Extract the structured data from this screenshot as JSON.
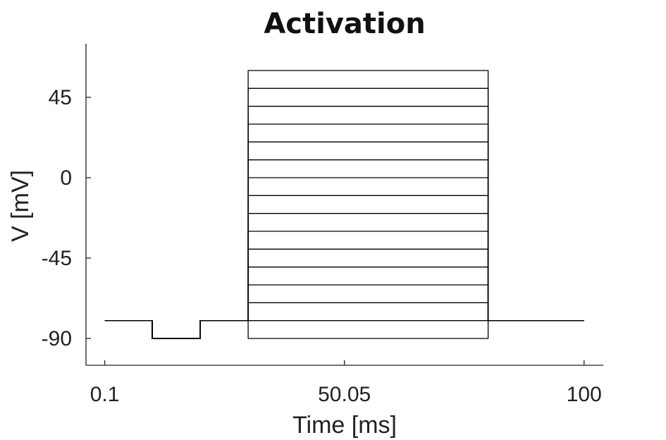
{
  "chart_data": {
    "type": "line",
    "title": "Activation",
    "xlabel": "Time [ms]",
    "ylabel": "V [mV]",
    "xlim": [
      -3.8,
      104
    ],
    "ylim": [
      -105,
      75
    ],
    "xticks": [
      0.1,
      50.05,
      100
    ],
    "xtick_labels": [
      "0.1",
      "50.05",
      "100"
    ],
    "yticks": [
      -90,
      -45,
      0,
      45
    ],
    "ytick_labels": [
      "-90",
      "-45",
      "0",
      "45"
    ],
    "grid": false,
    "legend": "none",
    "protocol": {
      "holding_mV": -80,
      "prepulse_mV": -90,
      "prepulse_start_ms": 10,
      "prepulse_end_ms": 20,
      "step_start_ms": 30,
      "step_end_ms": 80,
      "end_ms": 100
    },
    "series": [
      {
        "step_mV": -90
      },
      {
        "step_mV": -80
      },
      {
        "step_mV": -70
      },
      {
        "step_mV": -60
      },
      {
        "step_mV": -50
      },
      {
        "step_mV": -40
      },
      {
        "step_mV": -30
      },
      {
        "step_mV": -20
      },
      {
        "step_mV": -10
      },
      {
        "step_mV": 0
      },
      {
        "step_mV": 10
      },
      {
        "step_mV": 20
      },
      {
        "step_mV": 30
      },
      {
        "step_mV": 40
      },
      {
        "step_mV": 50
      },
      {
        "step_mV": 60
      }
    ]
  }
}
